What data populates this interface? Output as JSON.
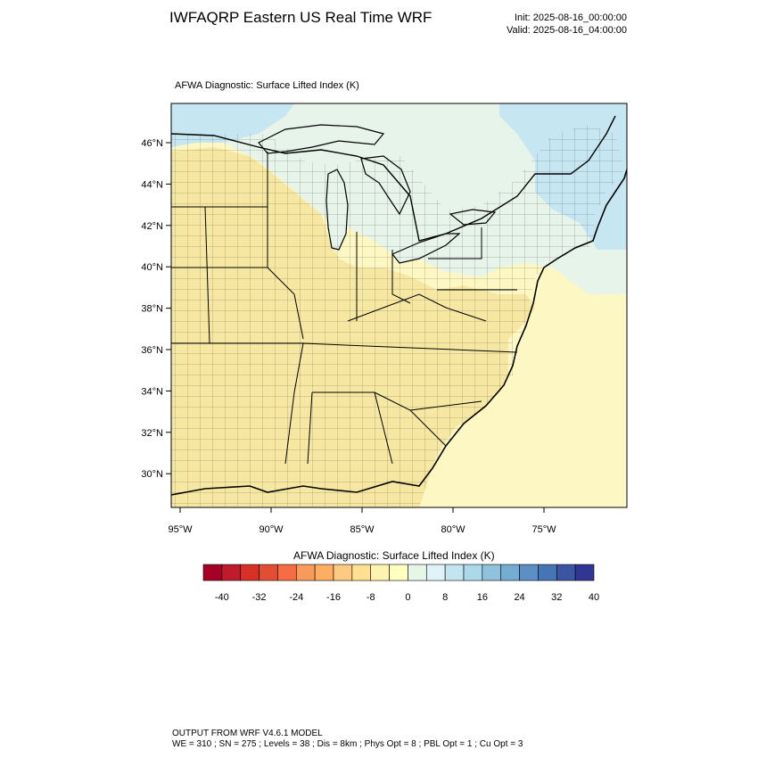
{
  "header": {
    "title": "IWFAQRP Eastern US Real Time WRF",
    "init": "Init: 2025-08-16_00:00:00",
    "valid": "Valid: 2025-08-16_04:00:00"
  },
  "map": {
    "subtitle": "AFWA Diagnostic: Surface Lifted Index   (K)",
    "lat_labels": [
      "46°N",
      "44°N",
      "42°N",
      "40°N",
      "38°N",
      "36°N",
      "34°N",
      "32°N",
      "30°N"
    ],
    "lon_labels": [
      "95°W",
      "90°W",
      "85°W",
      "80°W",
      "75°W"
    ],
    "colors": {
      "land_unstable": "#f6e8a2",
      "neutral": "#fdf8c3",
      "slightly_stable": "#e6f4ea",
      "stable": "#c6e6f2",
      "water": "#fdf8c3"
    }
  },
  "legend": {
    "title": "AFWA Diagnostic: Surface Lifted Index  (K)",
    "labels": [
      "-40",
      "-32",
      "-24",
      "-16",
      "-8",
      "0",
      "8",
      "16",
      "24",
      "32",
      "40"
    ],
    "colors": [
      "#a50026",
      "#c01b2a",
      "#d73027",
      "#e34d32",
      "#f46d43",
      "#f89a5a",
      "#fdae61",
      "#fec980",
      "#fee090",
      "#fef3b0",
      "#ffffbf",
      "#e8f6e8",
      "#e0f3f8",
      "#c3e5f0",
      "#abd9e9",
      "#8fc3dd",
      "#74add1",
      "#5c8fc4",
      "#4575b4",
      "#3c55a3",
      "#313695"
    ]
  },
  "footer": {
    "line1": "OUTPUT FROM WRF V4.6.1 MODEL",
    "line2": "WE = 310 ; SN = 275 ; Levels = 38 ; Dis = 8km ; Phys Opt = 8 ; PBL Opt = 1 ; Cu Opt = 3"
  }
}
